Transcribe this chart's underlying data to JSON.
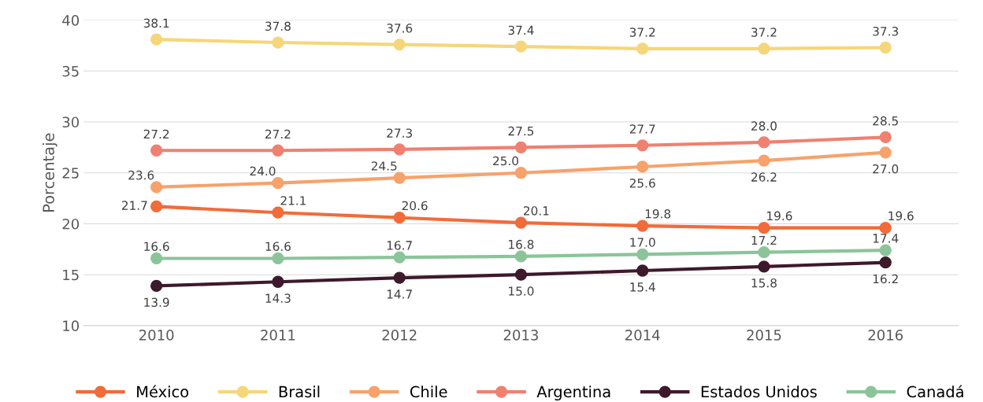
{
  "chart_data": {
    "type": "line",
    "ylabel": "Porcentaje",
    "categories": [
      "2010",
      "2011",
      "2012",
      "2013",
      "2014",
      "2015",
      "2016"
    ],
    "series": [
      {
        "name": "México",
        "color": "#f26b3a",
        "values": [
          21.7,
          21.1,
          20.6,
          20.1,
          19.8,
          19.6,
          19.6
        ],
        "value_labels": [
          "21.7",
          "21.1",
          "20.6",
          "20.1",
          "19.8",
          "19.6",
          "19.6"
        ]
      },
      {
        "name": "Brasil",
        "color": "#f5d67a",
        "values": [
          38.1,
          37.8,
          37.6,
          37.4,
          37.2,
          37.2,
          37.3
        ],
        "value_labels": [
          "38.1",
          "37.8",
          "37.6",
          "37.4",
          "37.2",
          "37.2",
          "37.3"
        ]
      },
      {
        "name": "Chile",
        "color": "#f7a26b",
        "values": [
          23.6,
          24.0,
          24.5,
          25.0,
          25.6,
          26.2,
          27.0
        ],
        "value_labels": [
          "23.6",
          "24.0",
          "24.5",
          "25.0",
          "25.6",
          "26.2",
          "27.0"
        ]
      },
      {
        "name": "Argentina",
        "color": "#f08070",
        "values": [
          27.2,
          27.2,
          27.3,
          27.5,
          27.7,
          28.0,
          28.5
        ],
        "value_labels": [
          "27.2",
          "27.2",
          "27.3",
          "27.5",
          "27.7",
          "28.0",
          "28.5"
        ]
      },
      {
        "name": "Estados Unidos",
        "color": "#3d1a2b",
        "values": [
          13.9,
          14.3,
          14.7,
          15.0,
          15.4,
          15.8,
          16.2
        ],
        "value_labels": [
          "13.9",
          "14.3",
          "14.7",
          "15.0",
          "15.4",
          "15.8",
          "16.2"
        ]
      },
      {
        "name": "Canadá",
        "color": "#8cc49a",
        "values": [
          16.6,
          16.6,
          16.7,
          16.8,
          17.0,
          17.2,
          17.4
        ],
        "value_labels": [
          "16.6",
          "16.6",
          "16.7",
          "16.8",
          "17.0",
          "17.2",
          "17.4"
        ]
      }
    ],
    "ylim": [
      10,
      40
    ],
    "yticks": [
      10,
      15,
      20,
      25,
      30,
      35,
      40
    ],
    "grid": "y",
    "legend": "bottom",
    "marker": "circle",
    "line_style": "solid"
  }
}
